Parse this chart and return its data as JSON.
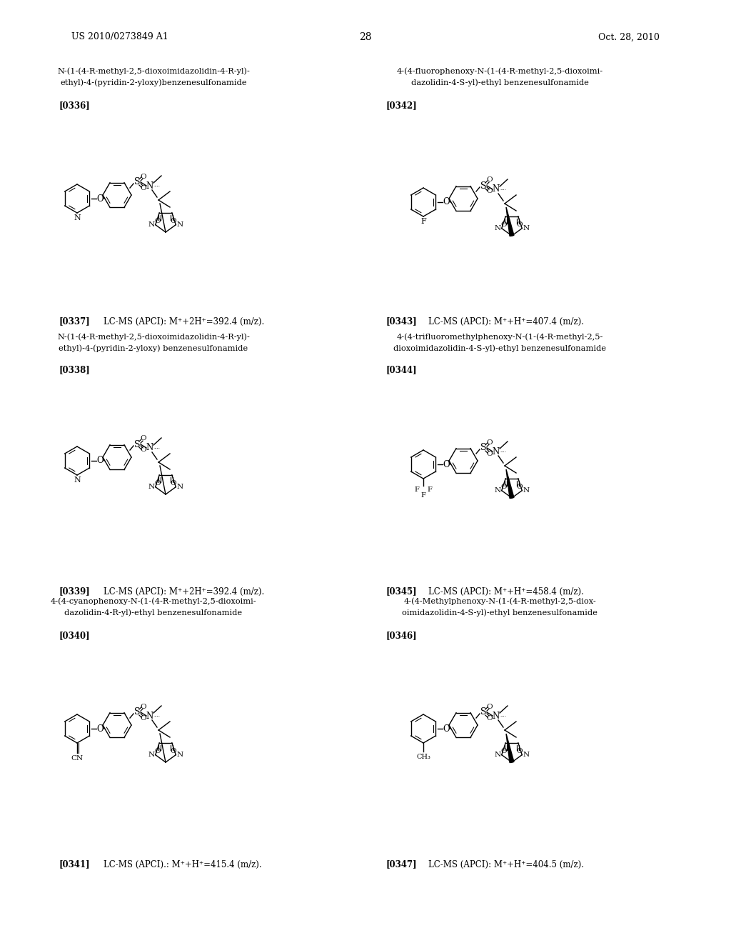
{
  "background_color": "#ffffff",
  "page_number": "28",
  "header_left": "US 2010/0273849 A1",
  "header_right": "Oct. 28, 2010",
  "entries": [
    {
      "ref": "[0336]",
      "ms_ref": "[0337]",
      "ms": "LC-MS (APCI): M⁺+2H⁺=392.4 (m/z).",
      "name": [
        "N-(1-(4-R-methyl-2,5-dioxoimidazolidin-4-R-yl)-",
        "ethyl)-4-(pyridin-2-yloxy)benzenesulfonamide"
      ],
      "col": 0,
      "row": 0
    },
    {
      "ref": "[0342]",
      "ms_ref": "[0343]",
      "ms": "LC-MS (APCI): M⁺+H⁺=407.4 (m/z).",
      "name": [
        "4-(4-fluorophenoxy-N-(1-(4-R-methyl-2,5-dioxoimi-",
        "dazolidin-4-S-yl)-ethyl benzenesulfonamide"
      ],
      "col": 1,
      "row": 0
    },
    {
      "ref": "[0338]",
      "ms_ref": "[0339]",
      "ms": "LC-MS (APCI): M⁺+2H⁺=392.4 (m/z).",
      "name": [
        "N-(1-(4-R-methyl-2,5-dioxoimidazolidin-4-R-yl)-",
        "ethyl)-4-(pyridin-2-yloxy) benzenesulfonamide"
      ],
      "col": 0,
      "row": 1
    },
    {
      "ref": "[0344]",
      "ms_ref": "[0345]",
      "ms": "LC-MS (APCI): M⁺+H⁺=458.4 (m/z).",
      "name": [
        "4-(4-trifluoromethylphenoxy-N-(1-(4-R-methyl-2,5-",
        "dioxoimidazolidin-4-S-yl)-ethyl benzenesulfonamide"
      ],
      "col": 1,
      "row": 1
    },
    {
      "ref": "[0340]",
      "ms_ref": "[0341]",
      "ms": "LC-MS (APCI).: M⁺+H⁺=415.4 (m/z).",
      "name": [
        "4-(4-cyanophenoxy-N-(1-(4-R-methyl-2,5-dioxoimi-",
        "dazolidin-4-R-yl)-ethyl benzenesulfonamide"
      ],
      "col": 0,
      "row": 2
    },
    {
      "ref": "[0346]",
      "ms_ref": "[0347]",
      "ms": "LC-MS (APCI): M⁺+H⁺=404.5 (m/z).",
      "name": [
        "4-(4-Methylphenoxy-N-(1-(4-R-methyl-2,5-diox-",
        "oimidazolidin-4-S-yl)-ethyl benzenesulfonamide"
      ],
      "col": 1,
      "row": 2
    }
  ]
}
